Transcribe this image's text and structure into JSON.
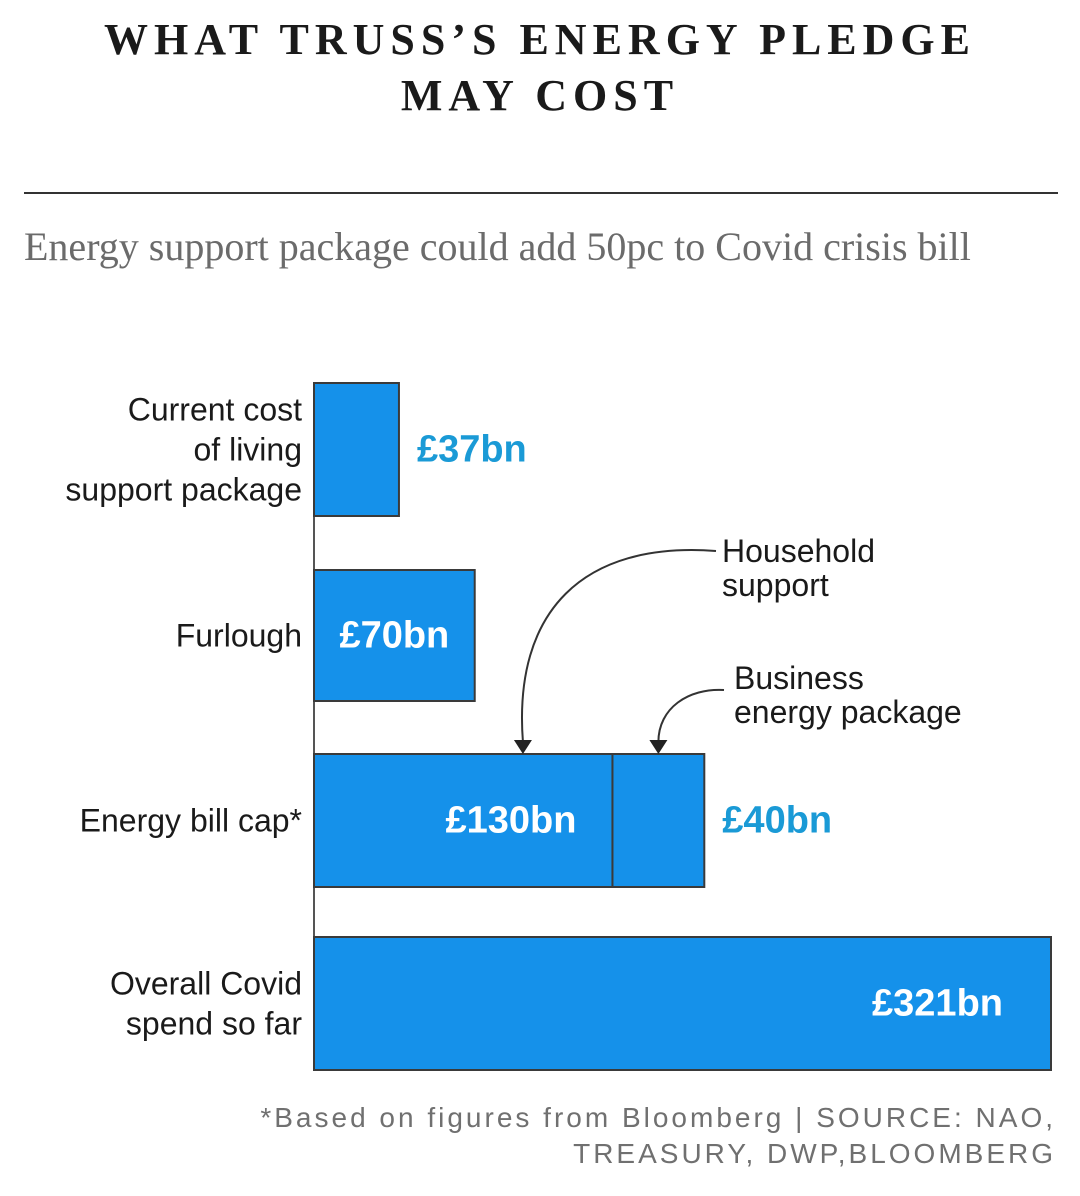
{
  "title_lines": [
    "WHAT TRUSS’S ENERGY PLEDGE",
    "MAY COST"
  ],
  "subtitle": "Energy support package could add 50pc to Covid crisis bill",
  "footnote_lines": [
    "*Based on figures from Bloomberg | SOURCE: NAO,",
    "TREASURY, DWP,BLOOMBERG"
  ],
  "colors": {
    "bar": "#1591ea",
    "bar_border": "#3a3a3a",
    "outside_label": "#1a9ad6",
    "inside_label": "#ffffff",
    "category_label": "#1a1a1a"
  },
  "chart_data": {
    "type": "bar",
    "orientation": "horizontal",
    "unit": "£bn",
    "categories": [
      "Current cost of living support package",
      "Furlough",
      "Energy bill cap*",
      "Overall Covid spend so far"
    ],
    "category_label_lines": [
      [
        "Current cost",
        "of living",
        "support package"
      ],
      [
        "Furlough"
      ],
      [
        "Energy bill cap*"
      ],
      [
        "Overall Covid",
        "spend so far"
      ]
    ],
    "bars": [
      {
        "category": "Current cost of living support package",
        "value": 37,
        "label": "£37bn",
        "label_position": "outside"
      },
      {
        "category": "Furlough",
        "value": 70,
        "label": "£70bn",
        "label_position": "inside"
      },
      {
        "category": "Energy bill cap*",
        "segments": [
          {
            "name": "Household support",
            "value": 130,
            "label": "£130bn",
            "label_position": "inside"
          },
          {
            "name": "Business energy package",
            "value": 40,
            "label": "£40bn",
            "label_position": "outside"
          }
        ]
      },
      {
        "category": "Overall Covid spend so far",
        "value": 321,
        "label": "£321bn",
        "label_position": "inside"
      }
    ],
    "annotations": [
      {
        "lines": [
          "Household",
          "support"
        ],
        "target": "Household support"
      },
      {
        "lines": [
          "Business",
          "energy package"
        ],
        "target": "Business energy package"
      }
    ],
    "xlim": [
      0,
      321
    ]
  }
}
